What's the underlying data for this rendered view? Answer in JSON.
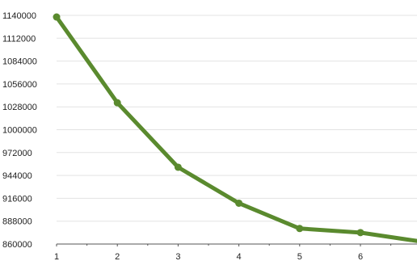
{
  "chart_data": {
    "type": "line",
    "title": "",
    "xlabel": "",
    "ylabel": "",
    "x": [
      1,
      2,
      3,
      4,
      5,
      6,
      7
    ],
    "series": [
      {
        "values": [
          1138000,
          1033000,
          954000,
          910000,
          879000,
          874000,
          863000
        ]
      }
    ],
    "x_ticks": [
      "1",
      "2",
      "3",
      "4",
      "5",
      "6"
    ],
    "y_ticks": [
      "860000",
      "888000",
      "916000",
      "944000",
      "972000",
      "1000000",
      "1028000",
      "1056000",
      "1084000",
      "1112000",
      "1140000"
    ],
    "xlim": [
      1,
      7
    ],
    "ylim": [
      860000,
      1140000
    ],
    "grid": "horizontal",
    "legend": "none",
    "line_color": "#5a8a2e",
    "grid_color": "#e3e3e3"
  }
}
